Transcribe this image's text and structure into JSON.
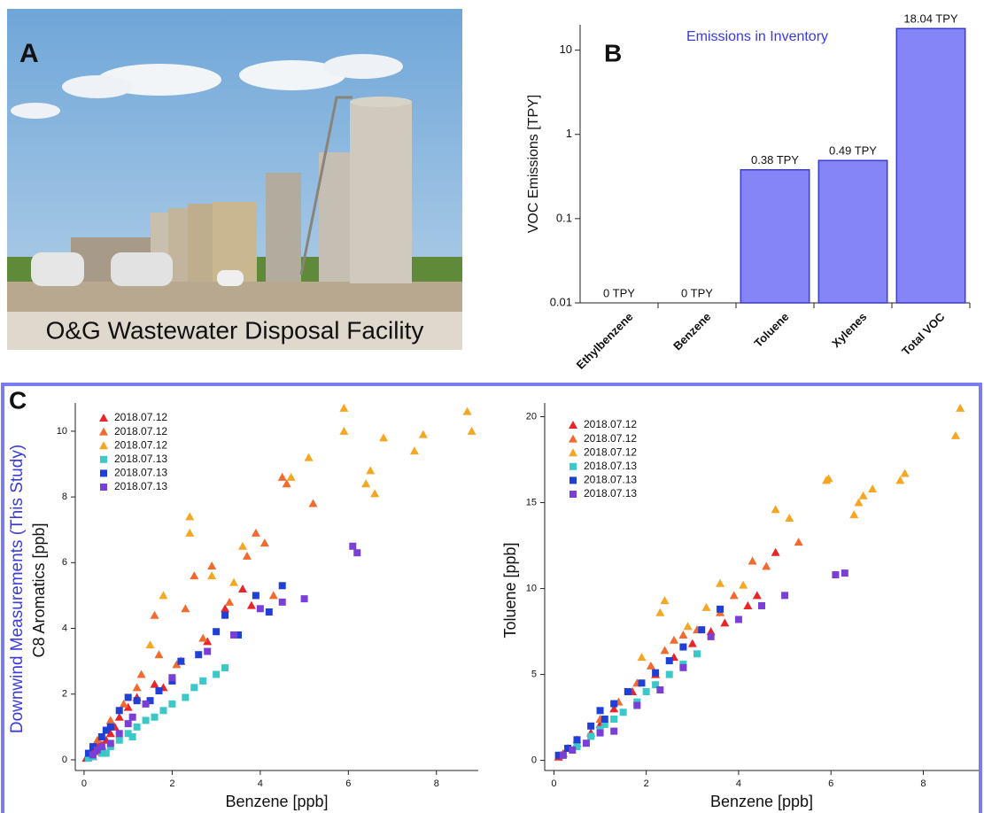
{
  "photo": {
    "label": "A",
    "caption": "O&G Wastewater Disposal Facility"
  },
  "section_c": {
    "label": "C",
    "side_label": "Downwind Measurements (This Study)"
  },
  "chart_data": [
    {
      "type": "bar",
      "panel_label": "B",
      "title": "Emissions in Inventory",
      "ylabel": "VOC Emissions [TPY]",
      "categories": [
        "Ethylbenzene",
        "Benzene",
        "Toluene",
        "Xylenes",
        "Total VOC"
      ],
      "values": [
        0,
        0,
        0.38,
        0.49,
        18.04
      ],
      "value_labels": [
        "0 TPY",
        "0 TPY",
        "0.38 TPY",
        "0.49 TPY",
        "18.04 TPY"
      ],
      "color": "#8585f7",
      "edge_color": "#3b3bd6",
      "title_color": "#3a3ae0",
      "log_scale": true,
      "ylim": [
        0.01,
        20
      ],
      "yticks": [
        0.01,
        0.1,
        1,
        10
      ]
    },
    {
      "type": "scatter",
      "xlabel": "Benzene [ppb]",
      "ylabel": "C8 Aromatics [ppb]",
      "xlim": [
        -0.2,
        8.95
      ],
      "ylim": [
        -0.54,
        10.86
      ],
      "xticks": [
        0,
        2,
        4,
        6,
        8
      ],
      "yticks": [
        0,
        2,
        4,
        6,
        8,
        10
      ],
      "series": [
        {
          "name": "2018.07.12",
          "color": "#e8262a",
          "marker": "triangle",
          "x": [
            0.05,
            0.1,
            0.15,
            0.2,
            0.25,
            0.3,
            0.35,
            0.4,
            0.5,
            0.6,
            0.7,
            0.8,
            1.0,
            1.2,
            1.6,
            1.8,
            2.2,
            2.8,
            3.2,
            3.6,
            3.8,
            0.2,
            0.45
          ],
          "values": [
            0.05,
            0.15,
            0.2,
            0.3,
            0.25,
            0.4,
            0.5,
            0.45,
            0.6,
            0.8,
            1.0,
            1.3,
            1.6,
            1.9,
            2.3,
            2.2,
            3.0,
            3.6,
            4.6,
            5.2,
            4.7,
            0.1,
            0.3
          ]
        },
        {
          "name": "2018.07.12",
          "color": "#f26a2e",
          "marker": "triangle",
          "x": [
            0.3,
            0.6,
            0.9,
            1.2,
            1.6,
            1.7,
            2.1,
            2.3,
            2.5,
            2.9,
            3.3,
            3.7,
            3.9,
            4.1,
            4.3,
            4.5,
            4.6,
            5.2,
            1.3,
            2.7
          ],
          "values": [
            0.6,
            1.2,
            1.7,
            2.2,
            4.4,
            3.2,
            2.9,
            4.6,
            5.6,
            5.9,
            4.8,
            6.2,
            6.9,
            6.6,
            5.0,
            8.6,
            8.4,
            7.8,
            2.6,
            3.7
          ]
        },
        {
          "name": "2018.07.12",
          "color": "#f5a623",
          "marker": "triangle",
          "x": [
            1.8,
            2.4,
            2.4,
            2.9,
            3.4,
            4.7,
            5.1,
            5.9,
            5.9,
            6.5,
            6.6,
            6.8,
            7.5,
            7.7,
            8.7,
            8.8,
            6.4,
            1.5,
            3.6
          ],
          "values": [
            5.0,
            7.4,
            6.9,
            5.6,
            5.4,
            8.6,
            9.2,
            10.7,
            10.0,
            8.8,
            8.1,
            9.8,
            9.4,
            9.9,
            10.6,
            10.0,
            8.4,
            3.5,
            6.5
          ]
        },
        {
          "name": "2018.07.13",
          "color": "#3cc8c8",
          "marker": "square",
          "x": [
            0.1,
            0.2,
            0.4,
            0.6,
            0.8,
            1.0,
            1.2,
            1.4,
            1.6,
            1.8,
            2.0,
            2.3,
            2.5,
            2.7,
            3.0,
            3.2,
            1.1,
            0.5
          ],
          "values": [
            0.05,
            0.1,
            0.2,
            0.4,
            0.6,
            0.8,
            1.0,
            1.2,
            1.3,
            1.5,
            1.7,
            1.9,
            2.2,
            2.4,
            2.6,
            2.8,
            0.7,
            0.2
          ]
        },
        {
          "name": "2018.07.13",
          "color": "#1f3fd6",
          "marker": "square",
          "x": [
            0.1,
            0.2,
            0.4,
            0.6,
            0.8,
            1.0,
            1.2,
            1.5,
            2.0,
            2.2,
            2.6,
            3.0,
            3.2,
            3.5,
            3.9,
            4.2,
            4.5,
            0.5,
            1.7
          ],
          "values": [
            0.2,
            0.4,
            0.7,
            1.0,
            1.5,
            1.9,
            1.8,
            1.8,
            2.4,
            3.0,
            3.2,
            3.9,
            4.4,
            3.8,
            5.0,
            4.5,
            5.3,
            0.9,
            2.1
          ]
        },
        {
          "name": "2018.07.13",
          "color": "#7a3fd6",
          "marker": "square",
          "x": [
            0.2,
            0.4,
            0.6,
            0.8,
            1.0,
            1.1,
            1.4,
            2.0,
            2.8,
            3.4,
            4.0,
            4.5,
            5.0,
            6.1,
            6.2,
            0.3
          ],
          "values": [
            0.15,
            0.4,
            0.5,
            0.8,
            1.1,
            1.3,
            1.7,
            2.5,
            3.3,
            3.8,
            4.6,
            4.8,
            4.9,
            6.5,
            6.3,
            0.3
          ]
        }
      ]
    },
    {
      "type": "scatter",
      "xlabel": "Benzene [ppb]",
      "ylabel": "Toluene [ppb]",
      "xlim": [
        -0.2,
        9.2
      ],
      "ylim": [
        -1,
        20.8
      ],
      "xticks": [
        0,
        2,
        4,
        6,
        8
      ],
      "yticks": [
        0,
        5,
        10,
        15,
        20
      ],
      "series": [
        {
          "name": "2018.07.12",
          "color": "#e8262a",
          "marker": "triangle",
          "x": [
            0.1,
            0.2,
            0.3,
            0.5,
            0.8,
            1.0,
            1.3,
            1.7,
            2.2,
            2.6,
            3.0,
            3.4,
            3.7,
            4.4,
            4.8,
            4.2
          ],
          "values": [
            0.2,
            0.4,
            0.7,
            1.0,
            1.6,
            2.1,
            3.0,
            4.0,
            5.0,
            6.0,
            6.8,
            7.5,
            8.0,
            9.6,
            12.1,
            9.0
          ]
        },
        {
          "name": "2018.07.12",
          "color": "#f26a2e",
          "marker": "triangle",
          "x": [
            0.5,
            1.0,
            1.4,
            1.8,
            2.1,
            2.4,
            2.6,
            3.1,
            3.6,
            3.9,
            4.3,
            4.6,
            5.3,
            2.8
          ],
          "values": [
            1.2,
            2.4,
            3.4,
            4.5,
            5.5,
            6.4,
            7.0,
            7.6,
            8.6,
            9.6,
            11.6,
            11.3,
            12.7,
            7.3
          ]
        },
        {
          "name": "2018.07.12",
          "color": "#f5a623",
          "marker": "triangle",
          "x": [
            1.9,
            2.4,
            2.3,
            2.9,
            3.6,
            4.1,
            4.8,
            5.1,
            5.9,
            5.95,
            6.5,
            6.6,
            6.7,
            6.9,
            7.5,
            7.6,
            8.7,
            8.8,
            3.3
          ],
          "values": [
            6.0,
            9.3,
            8.6,
            7.8,
            10.3,
            10.2,
            14.6,
            14.1,
            16.3,
            16.4,
            14.3,
            15.0,
            15.4,
            15.8,
            16.3,
            16.7,
            18.9,
            20.5,
            8.9
          ]
        },
        {
          "name": "2018.07.13",
          "color": "#3cc8c8",
          "marker": "square",
          "x": [
            0.2,
            0.5,
            0.8,
            1.0,
            1.3,
            1.5,
            1.8,
            2.0,
            2.2,
            2.5,
            2.8,
            3.1,
            1.1
          ],
          "values": [
            0.3,
            0.8,
            1.4,
            1.8,
            2.4,
            2.8,
            3.4,
            4.0,
            4.4,
            5.0,
            5.6,
            6.2,
            2.1
          ]
        },
        {
          "name": "2018.07.13",
          "color": "#1f3fd6",
          "marker": "square",
          "x": [
            0.1,
            0.3,
            0.5,
            0.8,
            1.0,
            1.3,
            1.6,
            1.9,
            2.2,
            2.5,
            2.8,
            3.2,
            3.6,
            1.1
          ],
          "values": [
            0.3,
            0.7,
            1.2,
            2.0,
            2.9,
            3.3,
            4.0,
            4.5,
            5.1,
            5.8,
            6.6,
            7.6,
            8.8,
            2.4
          ]
        },
        {
          "name": "2018.07.13",
          "color": "#7a3fd6",
          "marker": "square",
          "x": [
            0.2,
            0.4,
            0.7,
            1.0,
            1.3,
            1.8,
            2.3,
            2.8,
            3.4,
            4.0,
            4.5,
            5.0,
            6.1,
            6.3
          ],
          "values": [
            0.3,
            0.6,
            1.0,
            1.6,
            1.7,
            3.2,
            4.1,
            5.4,
            7.2,
            8.2,
            9.0,
            9.6,
            10.8,
            10.9
          ]
        }
      ]
    }
  ]
}
